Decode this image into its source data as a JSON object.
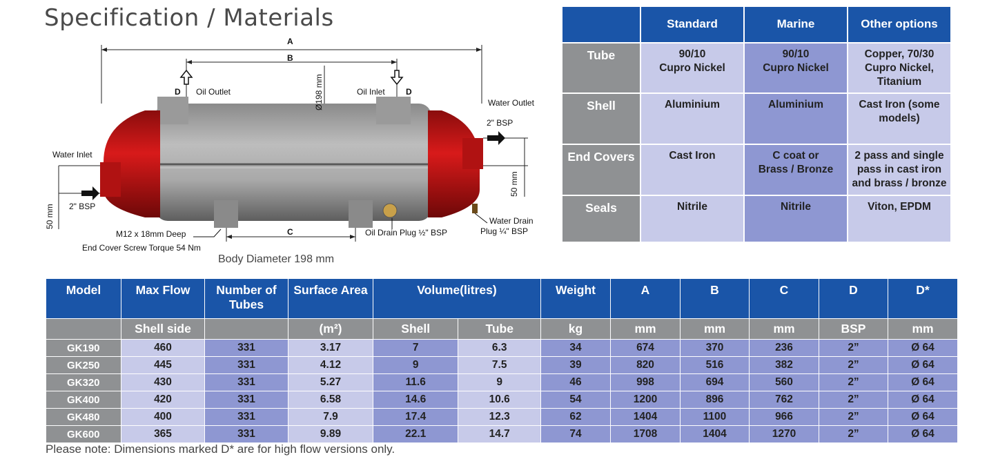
{
  "title": "Specification / Materials",
  "diagram": {
    "label_A": "A",
    "label_B": "B",
    "label_C": "C",
    "label_D_left": "D",
    "label_D_right": "D",
    "oil_outlet": "Oil Outlet",
    "oil_inlet": "Oil Inlet",
    "diameter": "Ø198 mm",
    "water_outlet": "Water Outlet",
    "bsp_right": "2\" BSP",
    "water_inlet": "Water Inlet",
    "bsp_left": "2\" BSP",
    "dim_50_left": "50 mm",
    "dim_50_right": "50 mm",
    "water_drain_1": "Water Drain",
    "water_drain_2": "Plug ¼\" BSP",
    "oil_drain": "Oil Drain Plug ½\" BSP",
    "m12": "M12 x 18mm Deep",
    "torque": "End Cover Screw Torque  54 Nm",
    "body_diameter": "Body Diameter 198 mm"
  },
  "materials": {
    "headers": [
      "Standard",
      "Marine",
      "Other options"
    ],
    "rows": [
      {
        "label": "Tube",
        "standard": [
          "90/10",
          "Cupro Nickel"
        ],
        "marine": [
          "90/10",
          "Cupro Nickel"
        ],
        "other": [
          "Copper, 70/30",
          "Cupro Nickel,",
          "Titanium"
        ]
      },
      {
        "label": "Shell",
        "standard": [
          "Aluminium"
        ],
        "marine": [
          "Aluminium"
        ],
        "other": [
          "Cast Iron (some",
          "models)"
        ]
      },
      {
        "label": "End Covers",
        "standard": [
          "Cast Iron"
        ],
        "marine": [
          "C coat or",
          "Brass / Bronze"
        ],
        "other": [
          "2 pass and single",
          "pass in cast iron",
          "and brass / bronze"
        ]
      },
      {
        "label": "Seals",
        "standard": [
          "Nitrile"
        ],
        "marine": [
          "Nitrile"
        ],
        "other": [
          "Viton, EPDM"
        ]
      }
    ]
  },
  "table": {
    "header1": [
      "Model",
      "Max Flow",
      "Number of Tubes",
      "Surface Area",
      "Volume(litres)",
      "Weight",
      "A",
      "B",
      "C",
      "D",
      "D*"
    ],
    "header2": [
      "",
      "Shell side",
      "",
      "(m²)",
      "Shell",
      "Tube",
      "kg",
      "mm",
      "mm",
      "mm",
      "BSP",
      "mm"
    ],
    "rows": [
      [
        "GK190",
        "460",
        "331",
        "3.17",
        "7",
        "6.3",
        "34",
        "674",
        "370",
        "236",
        "2”",
        "Ø 64"
      ],
      [
        "GK250",
        "445",
        "331",
        "4.12",
        "9",
        "7.5",
        "39",
        "820",
        "516",
        "382",
        "2”",
        "Ø 64"
      ],
      [
        "GK320",
        "430",
        "331",
        "5.27",
        "11.6",
        "9",
        "46",
        "998",
        "694",
        "560",
        "2”",
        "Ø 64"
      ],
      [
        "GK400",
        "420",
        "331",
        "6.58",
        "14.6",
        "10.6",
        "54",
        "1200",
        "896",
        "762",
        "2”",
        "Ø 64"
      ],
      [
        "GK480",
        "400",
        "331",
        "7.9",
        "17.4",
        "12.3",
        "62",
        "1404",
        "1100",
        "966",
        "2”",
        "Ø 64"
      ],
      [
        "GK600",
        "365",
        "331",
        "9.89",
        "22.1",
        "14.7",
        "74",
        "1708",
        "1404",
        "1270",
        "2”",
        "Ø 64"
      ]
    ]
  },
  "note": "Please note: Dimensions marked D* are for high flow versions only."
}
